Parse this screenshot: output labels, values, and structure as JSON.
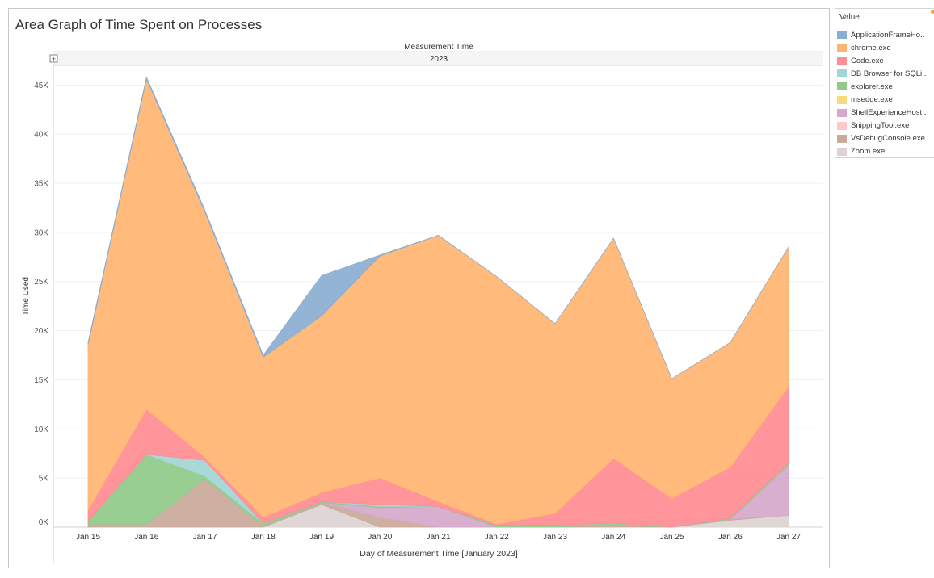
{
  "title": "Area Graph of Time Spent on Processes",
  "column_header": {
    "label": "Measurement Time",
    "value": "2023",
    "expand_symbol": "+"
  },
  "legend": {
    "title": "Value",
    "items": [
      {
        "label": "ApplicationFrameHo..",
        "color": "#8aaed0"
      },
      {
        "label": "chrome.exe",
        "color": "#ffb471"
      },
      {
        "label": "Code.exe",
        "color": "#ff8b93"
      },
      {
        "label": "DB Browser for SQLi..",
        "color": "#a2d5d5"
      },
      {
        "label": "explorer.exe",
        "color": "#8fca89"
      },
      {
        "label": "msedge.exe",
        "color": "#f8da7e"
      },
      {
        "label": "ShellExperienceHost..",
        "color": "#d6a8cc"
      },
      {
        "label": "SnippingTool.exe",
        "color": "#ffc6cc"
      },
      {
        "label": "VsDebugConsole.exe",
        "color": "#caa99b"
      },
      {
        "label": "Zoom.exe",
        "color": "#dcd4d2"
      }
    ]
  },
  "chart_data": {
    "type": "area",
    "stacked": true,
    "title": "Area Graph of Time Spent on Processes",
    "xlabel": "Day of Measurement Time [January 2023]",
    "ylabel": "Time Used",
    "categories": [
      "Jan 15",
      "Jan 16",
      "Jan 17",
      "Jan 18",
      "Jan 19",
      "Jan 20",
      "Jan 21",
      "Jan 22",
      "Jan 23",
      "Jan 24",
      "Jan 25",
      "Jan 26",
      "Jan 27"
    ],
    "ylim": [
      0,
      47000
    ],
    "yticks": [
      0,
      5000,
      10000,
      15000,
      20000,
      25000,
      30000,
      35000,
      40000,
      45000
    ],
    "ytick_labels": [
      "0K",
      "5K",
      "10K",
      "15K",
      "20K",
      "25K",
      "30K",
      "35K",
      "40K",
      "45K"
    ],
    "grid": true,
    "legend_position": "right",
    "series": [
      {
        "name": "Zoom.exe",
        "values": [
          0,
          0,
          0,
          0,
          2300,
          0,
          0,
          0,
          0,
          0,
          0,
          700,
          1200
        ]
      },
      {
        "name": "VsDebugConsole.exe",
        "values": [
          300,
          300,
          4900,
          100,
          200,
          1000,
          0,
          0,
          0,
          200,
          0,
          100,
          0
        ]
      },
      {
        "name": "SnippingTool.exe",
        "values": [
          0,
          0,
          0,
          0,
          0,
          0,
          0,
          0,
          0,
          0,
          0,
          0,
          0
        ]
      },
      {
        "name": "ShellExperienceHost..",
        "values": [
          0,
          0,
          0,
          0,
          0,
          1000,
          2100,
          0,
          0,
          0,
          0,
          0,
          5100
        ]
      },
      {
        "name": "msedge.exe",
        "values": [
          0,
          0,
          0,
          0,
          0,
          0,
          0,
          0,
          0,
          0,
          0,
          0,
          0
        ]
      },
      {
        "name": "explorer.exe",
        "values": [
          300,
          7100,
          300,
          300,
          100,
          100,
          0,
          200,
          200,
          200,
          0,
          100,
          200
        ]
      },
      {
        "name": "DB Browser for SQLi..",
        "values": [
          0,
          0,
          1600,
          0,
          0,
          200,
          0,
          0,
          0,
          0,
          0,
          0,
          0
        ]
      },
      {
        "name": "Code.exe",
        "values": [
          1100,
          4600,
          300,
          600,
          900,
          2700,
          500,
          100,
          1200,
          6600,
          2900,
          5200,
          7800
        ]
      },
      {
        "name": "chrome.exe",
        "values": [
          16900,
          33600,
          25000,
          16300,
          18000,
          22600,
          27100,
          25200,
          19300,
          22400,
          12200,
          12700,
          14200
        ]
      },
      {
        "name": "ApplicationFrameHo..",
        "values": [
          200,
          200,
          200,
          200,
          4100,
          100,
          0,
          0,
          0,
          0,
          0,
          0,
          0
        ]
      }
    ]
  }
}
